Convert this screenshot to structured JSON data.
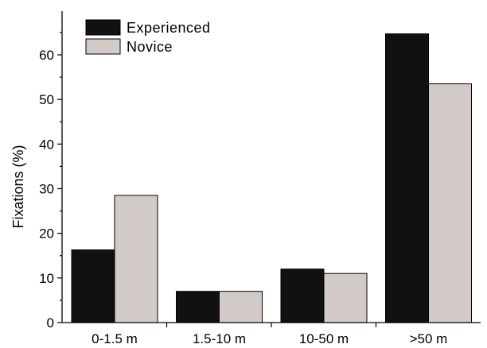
{
  "chart_data": {
    "type": "bar",
    "title": "",
    "xlabel": "",
    "ylabel": "Fixations (%)",
    "categories": [
      "0-1.5 m",
      "1.5-10 m",
      "10-50 m",
      ">50 m"
    ],
    "series": [
      {
        "name": "Experienced",
        "values": [
          16.3,
          7.0,
          12.0,
          64.7
        ],
        "color": "#111111"
      },
      {
        "name": "Novice",
        "values": [
          28.5,
          7.0,
          11.0,
          53.5
        ],
        "color": "#d3cbc8"
      }
    ],
    "ylim": [
      0,
      70
    ],
    "yticks": [
      0,
      10,
      20,
      30,
      40,
      50,
      60
    ],
    "yticks_minor": [
      5,
      15,
      25,
      35,
      45,
      55,
      65
    ],
    "yticks_labels": [
      "0",
      "10",
      "20",
      "30",
      "40",
      "50",
      "60"
    ],
    "grid": false,
    "legend_position": "top-left"
  }
}
